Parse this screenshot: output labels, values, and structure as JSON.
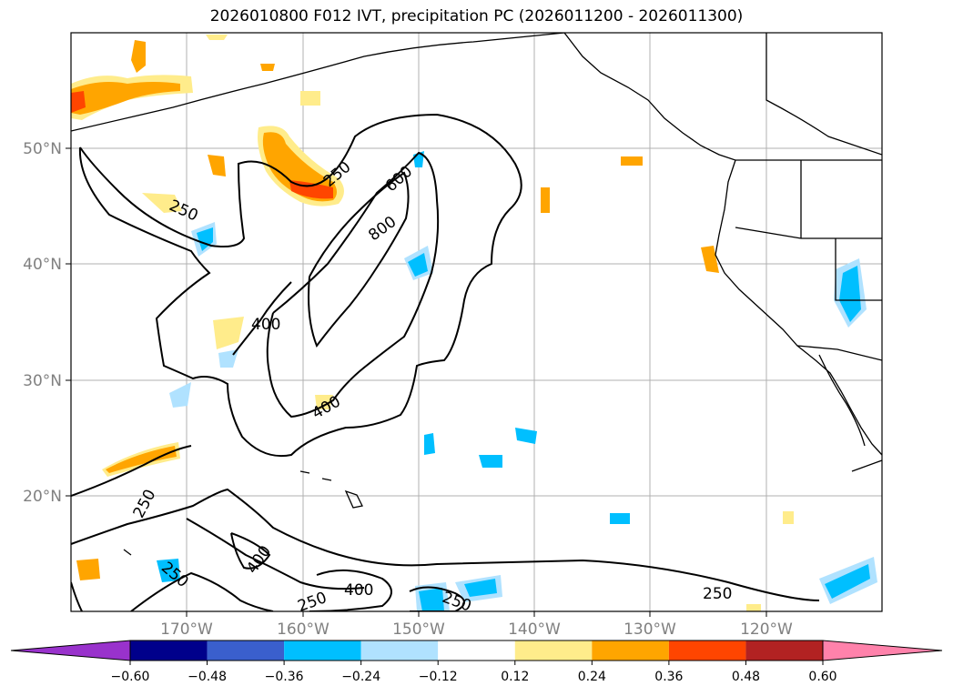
{
  "title": "2026010800 F012 IVT, precipitation PC (2026011200 - 2026011300)",
  "lat_labels": [
    "50°N",
    "40°N",
    "30°N",
    "20°N"
  ],
  "lon_labels": [
    "170°W",
    "160°W",
    "150°W",
    "140°W",
    "130°W",
    "120°W"
  ],
  "colorbar": {
    "ticks": [
      "−0.60",
      "−0.48",
      "−0.36",
      "−0.24",
      "−0.12",
      "0.12",
      "0.24",
      "0.36",
      "0.48",
      "0.60"
    ],
    "colors": [
      "#9932cc",
      "#00008b",
      "#3a5fcd",
      "#00bfff",
      "#b0e2ff",
      "#ffffff",
      "#ffec8b",
      "#ffa500",
      "#ff4500",
      "#b22222",
      "#ff82ab"
    ]
  },
  "contour_labels": [
    "250",
    "250",
    "600",
    "800",
    "400",
    "400",
    "250",
    "400",
    "250",
    "250",
    "400",
    "250",
    "250"
  ],
  "colors": {
    "land_border": "#000000",
    "grid": "#b0b0b0",
    "axis_text": "#808080"
  }
}
